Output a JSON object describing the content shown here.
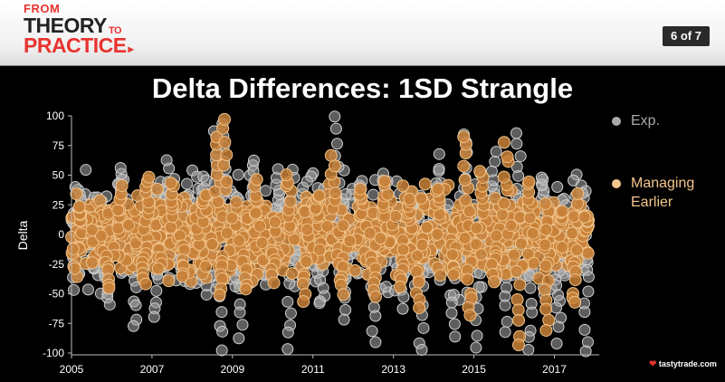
{
  "header": {
    "logo": {
      "from": "FROM",
      "theory": "THEORY",
      "to": "TO",
      "practice": "PRACTICE"
    },
    "page_indicator": "6 of 7"
  },
  "footer": {
    "brand": "tastytrade.com"
  },
  "colors": {
    "exp": "#a9a9a9",
    "managing": "#c8813a",
    "managing_edge": "#f0c38a",
    "background": "#000000"
  },
  "chart_data": {
    "type": "scatter",
    "title": "Delta Differences: 1SD Strangle",
    "xlabel": "",
    "ylabel": "Delta",
    "xlim": [
      2005,
      2018
    ],
    "ylim": [
      -100,
      100
    ],
    "x_ticks": [
      "2005",
      "2007",
      "2009",
      "2011",
      "2013",
      "2015",
      "2017"
    ],
    "y_ticks": [
      "100",
      "75",
      "50",
      "25",
      "0",
      "-25",
      "-50",
      "-75",
      "-100"
    ],
    "grid": false,
    "legend": {
      "position": "right",
      "entries": [
        "Exp.",
        "Managing Earlier"
      ]
    },
    "series": [
      {
        "name": "Exp.",
        "x": [
          2005.2,
          2005.9,
          2006.2,
          2006.6,
          2006.9,
          2007.1,
          2007.4,
          2007.7,
          2007.9,
          2008.3,
          2008.6,
          2008.7,
          2008.8,
          2009.2,
          2009.5,
          2009.8,
          2010.1,
          2010.4,
          2010.8,
          2011.2,
          2011.6,
          2011.8,
          2012.2,
          2012.5,
          2012.8,
          2013.2,
          2013.4,
          2013.7,
          2014.1,
          2014.5,
          2014.8,
          2015.1,
          2015.5,
          2015.8,
          2016.1,
          2016.4,
          2016.7,
          2017.1,
          2017.5,
          2017.8
        ],
        "y": [
          30,
          -60,
          55,
          -80,
          40,
          -70,
          60,
          -30,
          35,
          45,
          90,
          -95,
          95,
          -85,
          60,
          -40,
          50,
          -95,
          45,
          -60,
          100,
          -70,
          45,
          -90,
          50,
          -60,
          35,
          -100,
          65,
          -85,
          85,
          -95,
          70,
          -80,
          85,
          -100,
          50,
          -90,
          30,
          -100
        ]
      },
      {
        "name": "Managing Earlier",
        "x": [
          2005.2,
          2005.9,
          2006.2,
          2006.8,
          2006.9,
          2007.2,
          2007.5,
          2007.8,
          2008.3,
          2008.6,
          2008.7,
          2008.8,
          2009.3,
          2009.6,
          2010.0,
          2010.4,
          2010.8,
          2011.1,
          2011.5,
          2011.7,
          2012.2,
          2012.5,
          2012.8,
          2013.2,
          2013.4,
          2013.6,
          2014.1,
          2014.5,
          2014.8,
          2014.9,
          2015.2,
          2015.5,
          2015.8,
          2016.1,
          2016.4,
          2016.8,
          2017.2,
          2017.5,
          2017.8
        ],
        "y": [
          25,
          -45,
          40,
          -40,
          50,
          -30,
          45,
          -35,
          35,
          85,
          -50,
          100,
          -45,
          45,
          -40,
          50,
          -55,
          35,
          65,
          -50,
          40,
          -50,
          45,
          -45,
          30,
          -60,
          40,
          -35,
          85,
          -70,
          55,
          -40,
          75,
          -95,
          45,
          -80,
          20,
          -60,
          15
        ]
      }
    ]
  }
}
